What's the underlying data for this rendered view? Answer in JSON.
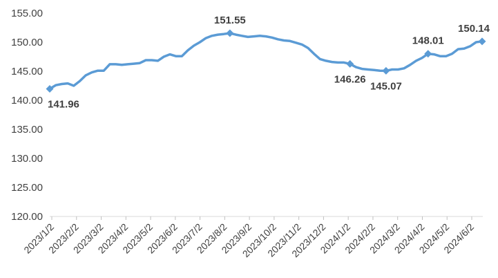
{
  "chart_data": {
    "type": "line",
    "title": "",
    "xlabel": "",
    "ylabel": "",
    "ylim": [
      120,
      155
    ],
    "yticks": [
      "120.00",
      "125.00",
      "130.00",
      "135.00",
      "140.00",
      "145.00",
      "150.00",
      "155.00"
    ],
    "xticks": [
      "2023/1/2",
      "2023/2/2",
      "2023/3/2",
      "2023/4/2",
      "2023/5/2",
      "2023/6/2",
      "2023/7/2",
      "2023/8/2",
      "2023/9/2",
      "2023/10/2",
      "2023/11/2",
      "2023/12/2",
      "2024/1/2",
      "2024/2/2",
      "2024/3/2",
      "2024/4/2",
      "2024/5/2",
      "2024/6/2"
    ],
    "grid": false,
    "line_color": "#5b9bd5",
    "series": [
      {
        "values": [
          141.96,
          142.6,
          142.8,
          142.9,
          142.5,
          143.3,
          144.3,
          144.8,
          145.1,
          145.1,
          146.2,
          146.2,
          146.1,
          146.2,
          146.3,
          146.4,
          146.9,
          146.9,
          146.8,
          147.5,
          147.9,
          147.6,
          147.6,
          148.6,
          149.4,
          150.0,
          150.7,
          151.1,
          151.3,
          151.4,
          151.55,
          151.3,
          151.1,
          150.9,
          151.0,
          151.1,
          151.0,
          150.8,
          150.5,
          150.3,
          150.2,
          149.9,
          149.6,
          149.0,
          148.0,
          147.1,
          146.8,
          146.6,
          146.5,
          146.5,
          146.26,
          145.7,
          145.4,
          145.3,
          145.2,
          145.1,
          145.07,
          145.3,
          145.3,
          145.5,
          146.1,
          146.8,
          147.3,
          148.01,
          147.9,
          147.6,
          147.6,
          148.0,
          148.8,
          148.9,
          149.3,
          150.0,
          150.14
        ]
      }
    ],
    "annotations": [
      {
        "index": 0,
        "label": "141.96",
        "position": "below"
      },
      {
        "index": 30,
        "label": "151.55",
        "position": "above"
      },
      {
        "index": 50,
        "label": "146.26",
        "position": "below"
      },
      {
        "index": 56,
        "label": "145.07",
        "position": "below"
      },
      {
        "index": 63,
        "label": "148.01",
        "position": "above"
      },
      {
        "index": 72,
        "label": "150.14",
        "position": "above"
      }
    ]
  }
}
